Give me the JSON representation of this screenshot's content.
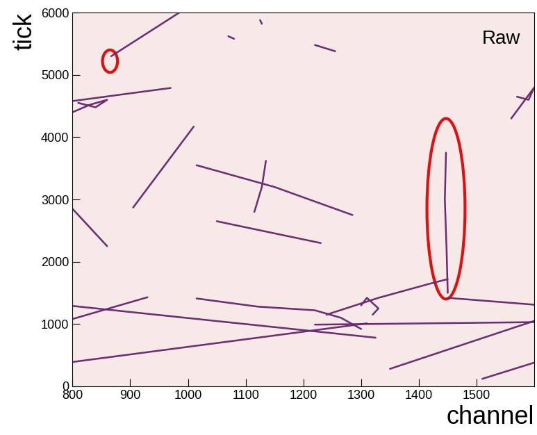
{
  "chart_data": {
    "type": "event_display",
    "label": "Raw",
    "x_label": "channel",
    "y_label": "tick",
    "xlim": [
      800,
      1600
    ],
    "xticks": [
      800,
      900,
      1000,
      1100,
      1200,
      1300,
      1400,
      1500
    ],
    "ylim": [
      0,
      6000
    ],
    "yticks": [
      0,
      1000,
      2000,
      3000,
      4000,
      5000,
      6000
    ],
    "color": "#3f2f8f",
    "tracks": [
      {
        "x": [
          867,
          985
        ],
        "y": [
          5300,
          6000
        ]
      },
      {
        "x": [
          800,
          970
        ],
        "y": [
          4580,
          4790
        ]
      },
      {
        "x": [
          905,
          1010
        ],
        "y": [
          2870,
          4170
        ]
      },
      {
        "x": [
          1015,
          1150,
          1285
        ],
        "y": [
          3550,
          3200,
          2750
        ]
      },
      {
        "x": [
          1135,
          1128,
          1115
        ],
        "y": [
          3620,
          3200,
          2800
        ]
      },
      {
        "x": [
          1050,
          1230
        ],
        "y": [
          2650,
          2300
        ]
      },
      {
        "x": [
          800,
          860
        ],
        "y": [
          2850,
          2250
        ]
      },
      {
        "x": [
          800,
          1325
        ],
        "y": [
          1290,
          780
        ]
      },
      {
        "x": [
          800,
          930
        ],
        "y": [
          1080,
          1430
        ]
      },
      {
        "x": [
          800,
          1310
        ],
        "y": [
          390,
          1010
        ]
      },
      {
        "x": [
          1015,
          1120,
          1220,
          1265,
          1300
        ],
        "y": [
          1410,
          1280,
          1220,
          1100,
          920
        ]
      },
      {
        "x": [
          1240,
          1330,
          1420,
          1450
        ],
        "y": [
          1150,
          1420,
          1650,
          1720
        ]
      },
      {
        "x": [
          1450,
          1600
        ],
        "y": [
          1420,
          1310
        ]
      },
      {
        "x": [
          1350,
          1600
        ],
        "y": [
          280,
          1050
        ]
      },
      {
        "x": [
          1510,
          1600
        ],
        "y": [
          120,
          380
        ]
      },
      {
        "x": [
          1220,
          1600
        ],
        "y": [
          990,
          1030
        ]
      },
      {
        "x": [
          1300,
          1310,
          1330,
          1320
        ],
        "y": [
          1300,
          1420,
          1250,
          1150
        ]
      },
      {
        "x": [
          1447,
          1445,
          1448,
          1450
        ],
        "y": [
          3750,
          3000,
          2200,
          1500
        ]
      },
      {
        "x": [
          800,
          830,
          860,
          840,
          810
        ],
        "y": [
          4400,
          4520,
          4600,
          4480,
          4550
        ]
      },
      {
        "x": [
          1560,
          1580,
          1600,
          1590,
          1570
        ],
        "y": [
          4300,
          4550,
          4800,
          4600,
          4650
        ]
      },
      {
        "x": [
          1220,
          1255
        ],
        "y": [
          5480,
          5380
        ]
      },
      {
        "x": [
          1070,
          1080
        ],
        "y": [
          5620,
          5580
        ]
      },
      {
        "x": [
          1125,
          1128
        ],
        "y": [
          5880,
          5820
        ]
      }
    ],
    "regions": [
      {
        "center": [
          865,
          5220
        ],
        "width": 26,
        "height": 360,
        "color": "#e01010"
      },
      {
        "center": [
          1447,
          2850
        ],
        "width": 66,
        "height": 2900,
        "color": "#e01010"
      }
    ]
  }
}
